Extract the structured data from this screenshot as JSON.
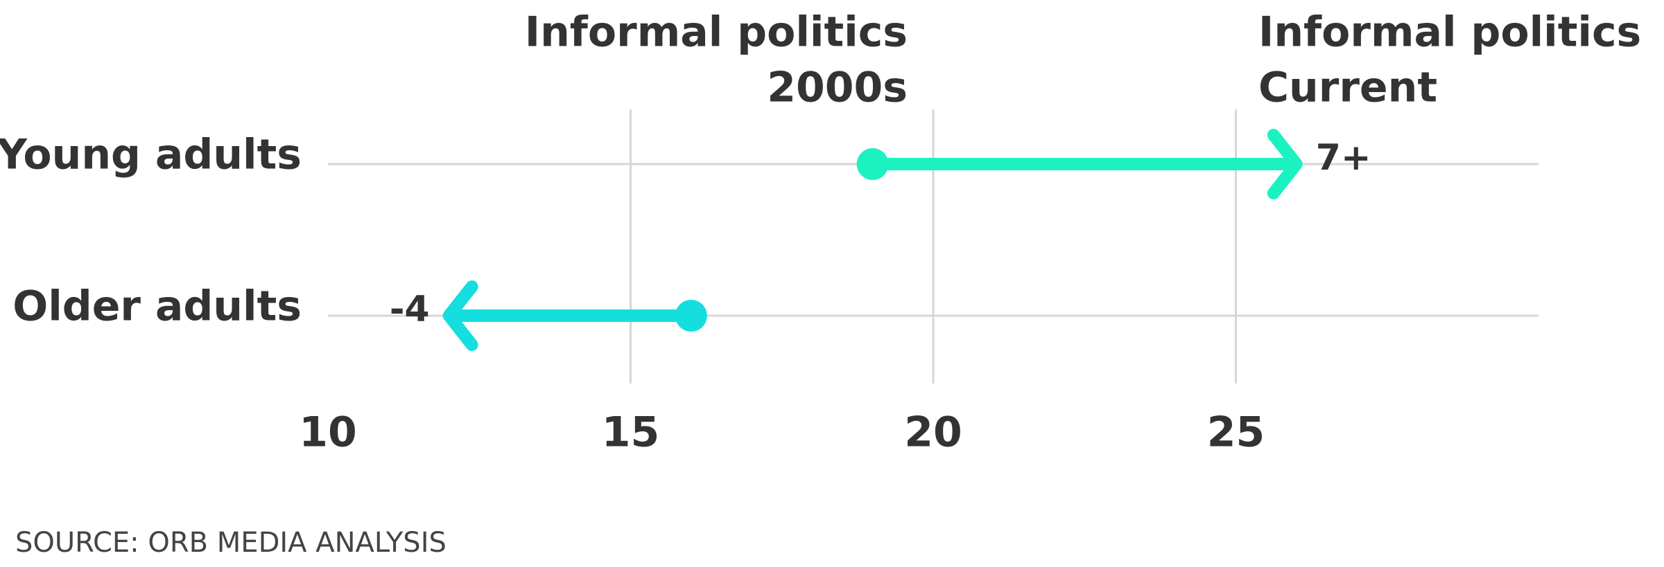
{
  "chart_data": {
    "type": "arrow",
    "categories": [
      "Young adults",
      "Older adults"
    ],
    "start": {
      "name": [
        "Informal politics",
        "2000s"
      ],
      "values": [
        19,
        16
      ]
    },
    "end": {
      "name": [
        "Informal politics",
        "Current"
      ]
    },
    "change": {
      "values": [
        7,
        -4
      ],
      "value_labels": [
        "7+",
        "-4"
      ]
    },
    "colors": [
      "#1cf2c0",
      "#14dede"
    ],
    "xlim": [
      10,
      30
    ],
    "xticks": [
      10,
      15,
      20,
      25
    ],
    "grid": true,
    "source": "SOURCE: ORB MEDIA ANALYSIS"
  }
}
